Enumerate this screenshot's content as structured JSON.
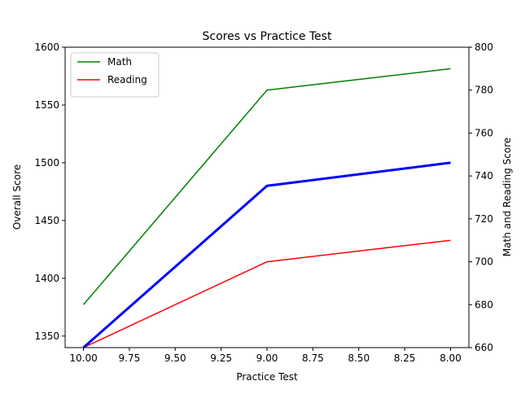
{
  "chart_data": {
    "type": "line",
    "title": "Scores vs Practice Test",
    "xlabel": "Practice Test",
    "ylabel_left": "Overall Score",
    "ylabel_right": "Math and Reading Score",
    "x_reversed": true,
    "xlim": [
      10.0,
      8.0
    ],
    "ylim_left": [
      1340,
      1600
    ],
    "ylim_right": [
      660,
      800
    ],
    "x_ticks": [
      "10.00",
      "9.75",
      "9.50",
      "9.25",
      "9.00",
      "8.75",
      "8.50",
      "8.25",
      "8.00"
    ],
    "y_left_ticks": [
      "1350",
      "1400",
      "1450",
      "1500",
      "1550",
      "1600"
    ],
    "y_right_ticks": [
      "660",
      "680",
      "700",
      "720",
      "740",
      "760",
      "780",
      "800"
    ],
    "legend_position": "upper-left",
    "grid": false,
    "x": [
      10,
      9,
      8
    ],
    "series": [
      {
        "name": "Math",
        "axis": "right",
        "color": "#008000",
        "values": [
          680,
          780,
          790
        ]
      },
      {
        "name": "Reading",
        "axis": "right",
        "color": "#ff0000",
        "values": [
          660,
          700,
          710
        ]
      },
      {
        "axis": "left",
        "color": "#0000ff",
        "values": [
          1340,
          1480,
          1500
        ]
      }
    ]
  }
}
